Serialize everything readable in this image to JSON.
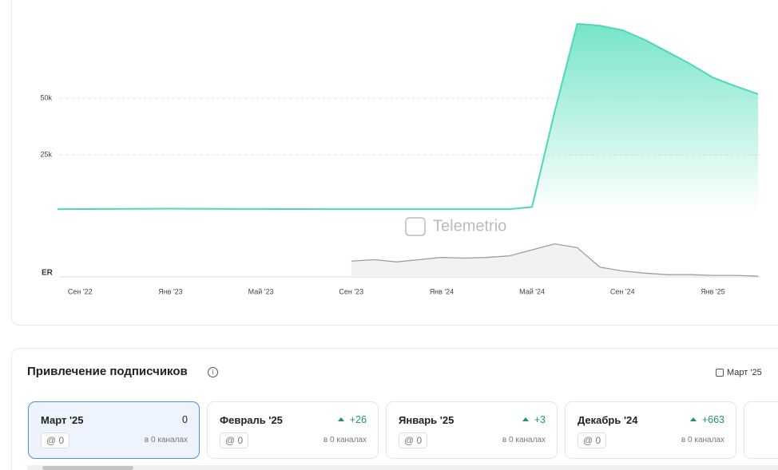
{
  "chart_data": {
    "type": "area",
    "x": [
      "2022-08",
      "2022-09",
      "2022-10",
      "2022-11",
      "2022-12",
      "2023-01",
      "2023-02",
      "2023-03",
      "2023-04",
      "2023-05",
      "2023-06",
      "2023-07",
      "2023-08",
      "2023-09",
      "2023-10",
      "2023-11",
      "2023-12",
      "2024-01",
      "2024-02",
      "2024-03",
      "2024-04",
      "2024-05",
      "2024-06",
      "2024-07",
      "2024-08",
      "2024-09",
      "2024-10",
      "2024-11",
      "2024-12",
      "2025-01",
      "2025-02",
      "2025-03"
    ],
    "xlim": [
      "2022-08",
      "2025-03"
    ],
    "xticks": [
      {
        "value": "2022-09",
        "label": "Сен '22"
      },
      {
        "value": "2023-01",
        "label": "Янв '23"
      },
      {
        "value": "2023-05",
        "label": "Май '23"
      },
      {
        "value": "2023-09",
        "label": "Сен '23"
      },
      {
        "value": "2024-01",
        "label": "Янв '24"
      },
      {
        "value": "2024-05",
        "label": "Май '24"
      },
      {
        "value": "2024-09",
        "label": "Сен '24"
      },
      {
        "value": "2025-01",
        "label": "Янв '25"
      }
    ],
    "ylim": [
      0,
      85000
    ],
    "yticks": [
      {
        "value": 25000,
        "label": "25k"
      },
      {
        "value": 50000,
        "label": "50k"
      }
    ],
    "y2lim": [
      0,
      50
    ],
    "y2_label": "ER",
    "watermark": "Telemetrio",
    "grid": true,
    "series": [
      {
        "color": "#4fd8b8",
        "values": [
          1000,
          1050,
          1100,
          1150,
          1200,
          1250,
          1200,
          1150,
          1100,
          1100,
          1050,
          1050,
          1000,
          1000,
          1000,
          1000,
          1000,
          1000,
          1000,
          1000,
          1000,
          2000,
          44000,
          82800,
          82000,
          80000,
          75700,
          70400,
          65100,
          59100,
          55300,
          51800
        ]
      },
      {
        "color": "#9aa0a6",
        "axis": "y2",
        "values": [
          null,
          null,
          null,
          null,
          null,
          null,
          null,
          null,
          null,
          null,
          null,
          null,
          null,
          21,
          23,
          20,
          23,
          26,
          25,
          26,
          28,
          36,
          44,
          39,
          13,
          8,
          5,
          3,
          3,
          2,
          2,
          1
        ]
      }
    ]
  },
  "panel": {
    "title": "Привлечение подписчиков",
    "period": "Март '25",
    "cards": [
      {
        "month": "Март '25",
        "change": "0",
        "mentions": "@ 0",
        "channels": "в 0 каналах"
      },
      {
        "month": "Февраль '25",
        "change": "+26",
        "mentions": "@ 0",
        "channels": "в 0 каналах"
      },
      {
        "month": "Январь '25",
        "change": "+3",
        "mentions": "@ 0",
        "channels": "в 0 каналах"
      },
      {
        "month": "Декабрь '24",
        "change": "+663",
        "mentions": "@ 0",
        "channels": "в 0 каналах"
      }
    ]
  }
}
